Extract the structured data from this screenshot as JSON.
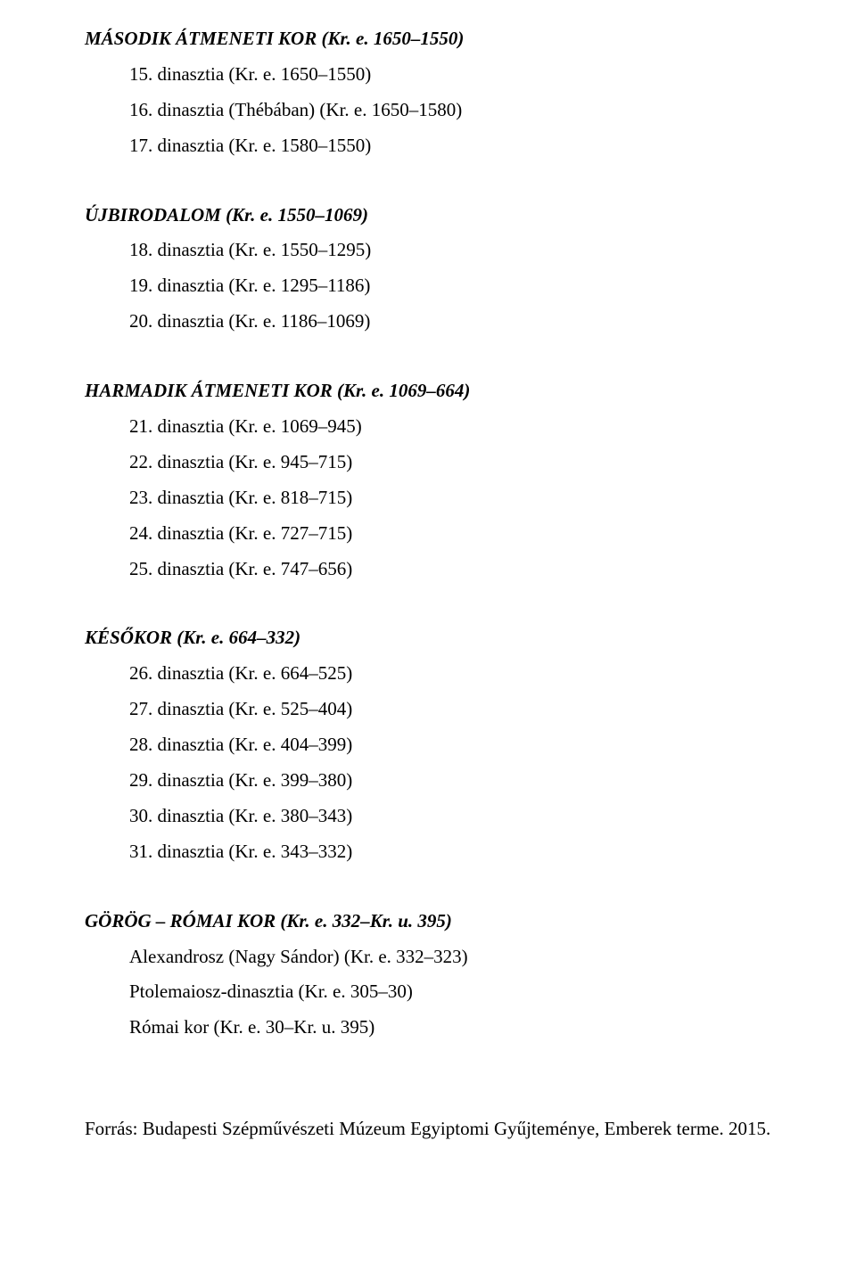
{
  "sections": [
    {
      "title": "MÁSODIK ÁTMENETI KOR (Kr. e. 1650–1550)",
      "items": [
        "15. dinasztia (Kr. e. 1650–1550)",
        "16. dinasztia (Thébában) (Kr. e. 1650–1580)",
        "17. dinasztia (Kr. e. 1580–1550)"
      ]
    },
    {
      "title": "ÚJBIRODALOM (Kr. e. 1550–1069)",
      "items": [
        "18. dinasztia (Kr. e. 1550–1295)",
        "19. dinasztia (Kr. e. 1295–1186)",
        "20. dinasztia (Kr. e. 1186–1069)"
      ]
    },
    {
      "title": "HARMADIK ÁTMENETI KOR (Kr. e. 1069–664)",
      "items": [
        "21. dinasztia (Kr. e. 1069–945)",
        "22. dinasztia (Kr. e. 945–715)",
        "23. dinasztia (Kr. e. 818–715)",
        "24. dinasztia (Kr. e. 727–715)",
        "25. dinasztia (Kr. e. 747–656)"
      ]
    },
    {
      "title": "KÉSŐKOR (Kr. e. 664–332)",
      "items": [
        "26. dinasztia (Kr. e. 664–525)",
        "27. dinasztia (Kr. e. 525–404)",
        "28. dinasztia (Kr. e. 404–399)",
        "29. dinasztia (Kr. e. 399–380)",
        "30. dinasztia (Kr. e. 380–343)",
        "31. dinasztia (Kr. e. 343–332)"
      ]
    },
    {
      "title": "GÖRÖG – RÓMAI KOR (Kr. e. 332–Kr. u. 395)",
      "items": [
        "Alexandrosz (Nagy Sándor) (Kr. e. 332–323)",
        "Ptolemaiosz-dinasztia (Kr. e. 305–30)",
        "Római kor (Kr. e. 30–Kr. u. 395)"
      ]
    }
  ],
  "footer": "Forrás: Budapesti Szépművészeti Múzeum Egyiptomi Gyűjteménye, Emberek terme. 2015."
}
